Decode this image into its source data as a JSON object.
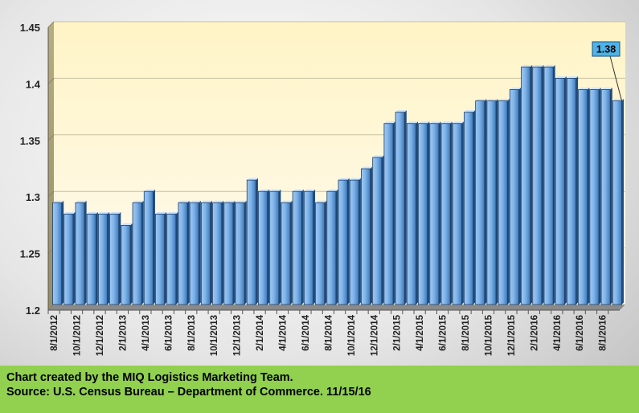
{
  "chart_data": {
    "type": "bar",
    "title": "",
    "xlabel": "",
    "ylabel": "",
    "ylim": [
      1.2,
      1.45
    ],
    "yticks": [
      "1.2",
      "1.25",
      "1.3",
      "1.35",
      "1.4",
      "1.45"
    ],
    "grid": true,
    "categories": [
      "8/1/2012",
      "9/1/2012",
      "10/1/2012",
      "11/1/2012",
      "12/1/2012",
      "1/1/2013",
      "2/1/2013",
      "3/1/2013",
      "4/1/2013",
      "5/1/2013",
      "6/1/2013",
      "7/1/2013",
      "8/1/2013",
      "9/1/2013",
      "10/1/2013",
      "11/1/2013",
      "12/1/2013",
      "1/1/2014",
      "2/1/2014",
      "3/1/2014",
      "4/1/2014",
      "5/1/2014",
      "6/1/2014",
      "7/1/2014",
      "8/1/2014",
      "9/1/2014",
      "10/1/2014",
      "11/1/2014",
      "12/1/2014",
      "1/1/2015",
      "2/1/2015",
      "3/1/2015",
      "4/1/2015",
      "5/1/2015",
      "6/1/2015",
      "7/1/2015",
      "8/1/2015",
      "9/1/2015",
      "10/1/2015",
      "11/1/2015",
      "12/1/2015",
      "1/1/2016",
      "2/1/2016",
      "3/1/2016",
      "4/1/2016",
      "5/1/2016",
      "6/1/2016",
      "7/1/2016",
      "8/1/2016",
      "9/1/2016"
    ],
    "shown_tick_labels": [
      "8/1/2012",
      "10/1/2012",
      "12/1/2012",
      "2/1/2013",
      "4/1/2013",
      "6/1/2013",
      "8/1/2013",
      "10/1/2013",
      "12/1/2013",
      "2/1/2014",
      "4/1/2014",
      "6/1/2014",
      "8/1/2014",
      "10/1/2014",
      "12/1/2014",
      "2/1/2015",
      "4/1/2015",
      "6/1/2015",
      "8/1/2015",
      "10/1/2015",
      "12/1/2015",
      "2/1/2016",
      "4/1/2016",
      "6/1/2016",
      "8/1/2016"
    ],
    "values": [
      1.29,
      1.28,
      1.29,
      1.28,
      1.28,
      1.28,
      1.27,
      1.29,
      1.3,
      1.28,
      1.28,
      1.29,
      1.29,
      1.29,
      1.29,
      1.29,
      1.29,
      1.31,
      1.3,
      1.3,
      1.29,
      1.3,
      1.3,
      1.29,
      1.3,
      1.31,
      1.31,
      1.32,
      1.33,
      1.36,
      1.37,
      1.36,
      1.36,
      1.36,
      1.36,
      1.36,
      1.37,
      1.38,
      1.38,
      1.38,
      1.39,
      1.41,
      1.41,
      1.41,
      1.4,
      1.4,
      1.39,
      1.39,
      1.39,
      1.38
    ],
    "annotation": {
      "label": "1.38",
      "category": "9/1/2016"
    }
  },
  "colors": {
    "bar_top": "#cfe6ff",
    "bar_mid": "#6ea8e6",
    "bar_bottom": "#2d5f9a",
    "plot_bg": "#fff5cc",
    "wall": "#a89f74",
    "callout_bg": "#4db3e8",
    "footer_bg": "#92d050"
  },
  "footer": {
    "line1": "Chart created by the MIQ Logistics Marketing Team.",
    "line2": "Source: U.S. Census Bureau – Department of Commerce. 11/15/16"
  }
}
